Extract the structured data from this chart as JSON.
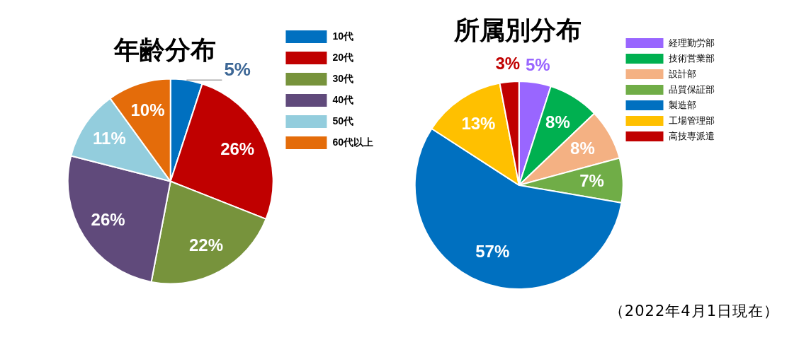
{
  "chart_data": [
    {
      "type": "pie",
      "title": "年齢分布",
      "categories": [
        "10代",
        "20代",
        "30代",
        "40代",
        "50代",
        "60代以上"
      ],
      "values": [
        5,
        26,
        22,
        26,
        11,
        10
      ],
      "colors": [
        "#0070c0",
        "#c00000",
        "#77933c",
        "#604a7b",
        "#93cddd",
        "#e46c0a"
      ],
      "value_labels": [
        "5%",
        "26%",
        "22%",
        "26%",
        "11%",
        "10%"
      ],
      "legend": "top right"
    },
    {
      "type": "pie",
      "title": "所属別分布",
      "categories": [
        "経理勤労部",
        "技術営業部",
        "設計部",
        "品質保証部",
        "製造部",
        "工場管理部",
        "高技専派遣"
      ],
      "values": [
        5,
        8,
        8,
        7,
        57,
        13,
        3
      ],
      "colors": [
        "#9966ff",
        "#00b050",
        "#f4b183",
        "#70ad47",
        "#0070c0",
        "#ffc000",
        "#c00000"
      ],
      "value_labels": [
        "5%",
        "8%",
        "8%",
        "7%",
        "57%",
        "13%",
        "3%"
      ],
      "legend": "top right",
      "annotations": [
        "（2022年4月1日現在）"
      ]
    }
  ]
}
